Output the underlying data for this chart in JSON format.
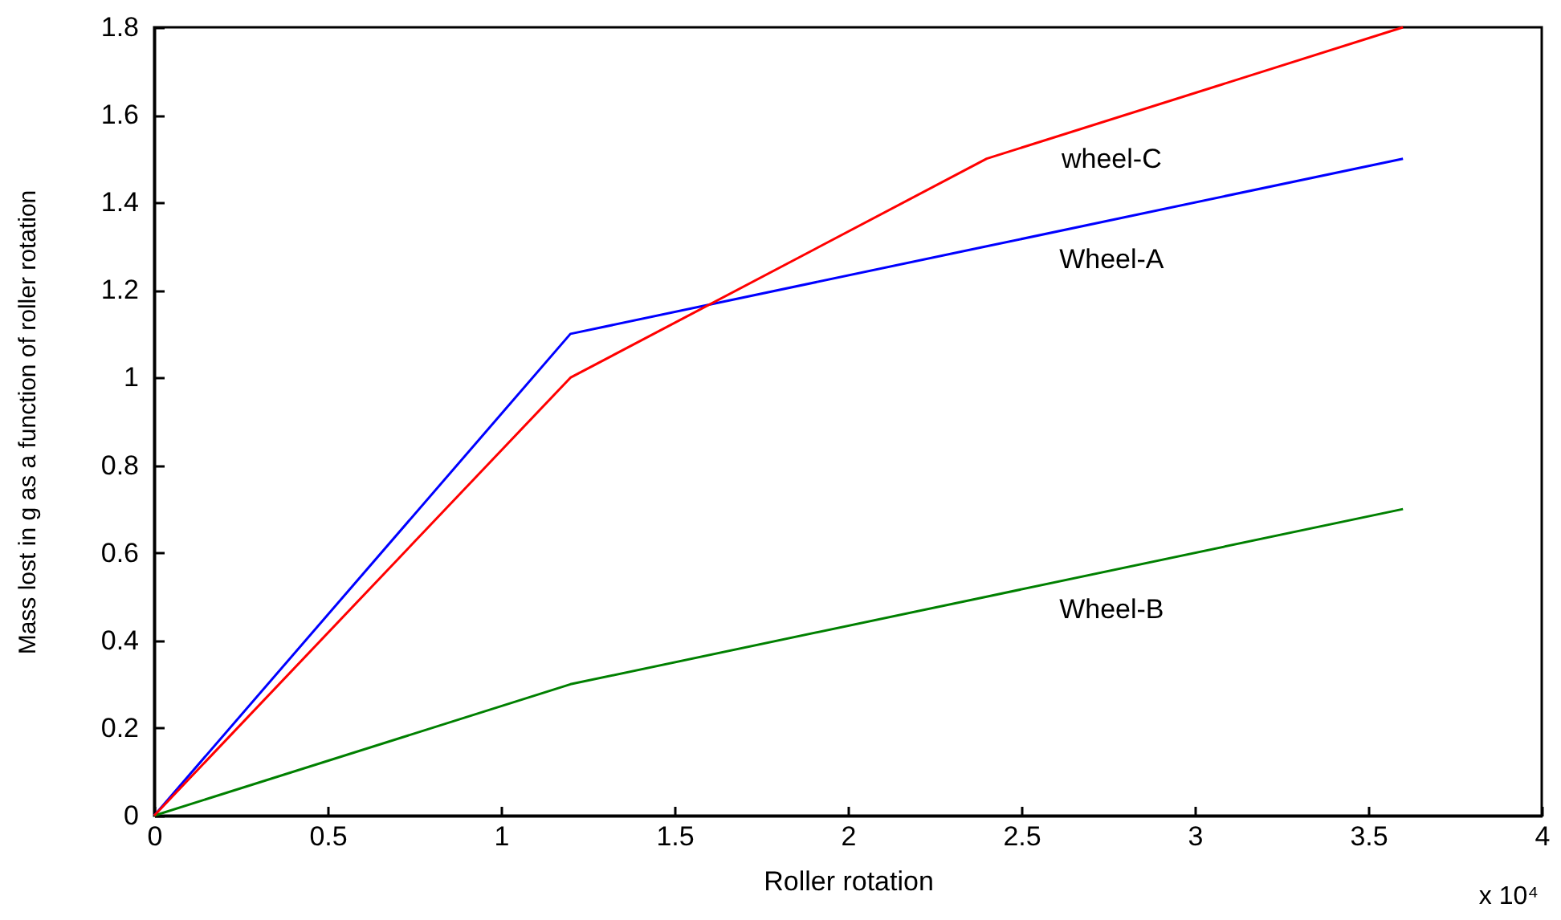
{
  "chart_data": {
    "type": "line",
    "xlabel": "Roller rotation",
    "ylabel": "Mass lost in g as a function of roller rotation",
    "x": [
      0,
      1.2,
      2.4,
      3.6
    ],
    "series": [
      {
        "name": "Wheel-A",
        "color": "#0000ff",
        "values": [
          0,
          1.1,
          1.3,
          1.5
        ]
      },
      {
        "name": "Wheel-B",
        "color": "#008000",
        "values": [
          0,
          0.3,
          0.5,
          0.7
        ]
      },
      {
        "name": "wheel-C",
        "color": "#ff0000",
        "values": [
          0,
          1.0,
          1.5,
          1.8
        ]
      }
    ],
    "xlim": [
      0,
      4
    ],
    "xticks": [
      0,
      0.5,
      1,
      1.5,
      2,
      2.5,
      3,
      3.5,
      4
    ],
    "ylim": [
      0,
      1.8
    ],
    "yticks": [
      0,
      0.2,
      0.4,
      0.6,
      0.8,
      1,
      1.2,
      1.4,
      1.6,
      1.8
    ],
    "line_style": "solid",
    "annotations": [
      "x 10⁴"
    ]
  }
}
